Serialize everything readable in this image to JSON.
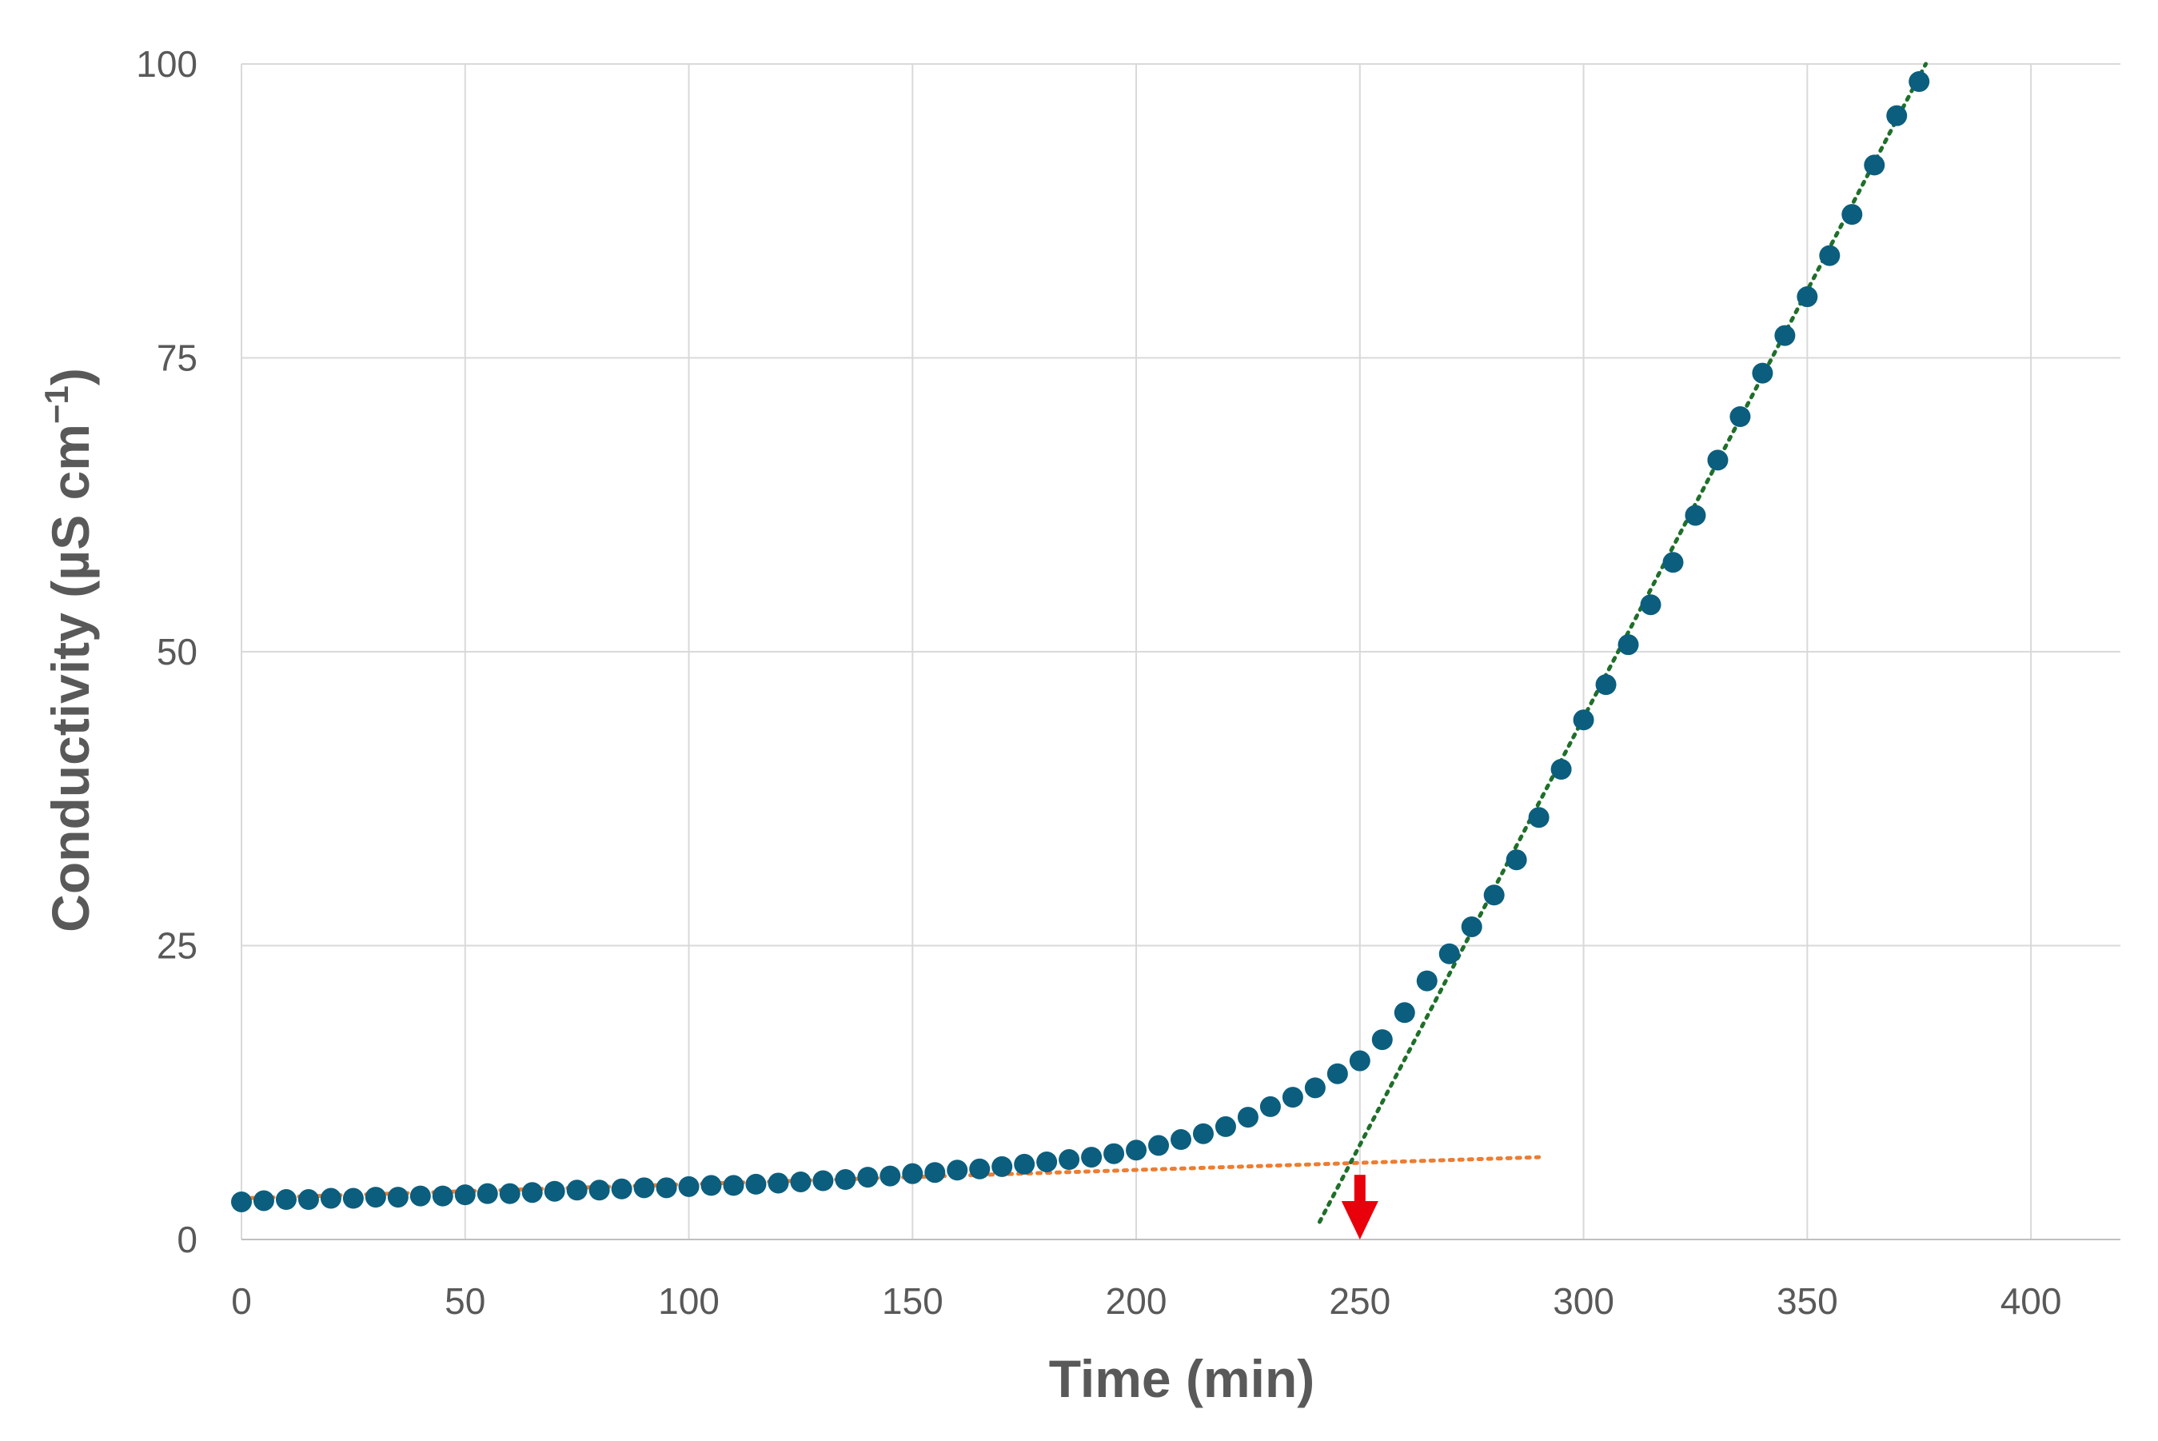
{
  "chart_data": {
    "type": "scatter",
    "title": "",
    "xlabel": "Time (min)",
    "ylabel_main": "Conductivity (µS cm",
    "ylabel_sup": "−1",
    "ylabel_close": ")",
    "xlim": [
      0,
      420
    ],
    "ylim": [
      0,
      100
    ],
    "xticks": [
      0,
      50,
      100,
      150,
      200,
      250,
      300,
      350,
      400
    ],
    "yticks": [
      0,
      25,
      50,
      75,
      100
    ],
    "grid": true,
    "legend": "none",
    "series": [
      {
        "marker": "circle",
        "color": "#0b5e7e",
        "x": [
          0,
          5,
          10,
          15,
          20,
          25,
          30,
          35,
          40,
          45,
          50,
          55,
          60,
          65,
          70,
          75,
          80,
          85,
          90,
          95,
          100,
          105,
          110,
          115,
          120,
          125,
          130,
          135,
          140,
          145,
          150,
          155,
          160,
          165,
          170,
          175,
          180,
          185,
          190,
          195,
          200,
          205,
          210,
          215,
          220,
          225,
          230,
          235,
          240,
          245,
          250,
          255,
          260,
          265,
          270,
          275,
          280,
          285,
          290,
          295,
          300,
          305,
          310,
          315,
          320,
          325,
          330,
          335,
          340,
          345,
          350,
          355,
          360,
          365,
          370,
          375
        ],
        "y": [
          3.2,
          3.3,
          3.4,
          3.4,
          3.5,
          3.5,
          3.6,
          3.6,
          3.7,
          3.7,
          3.8,
          3.9,
          3.9,
          4.0,
          4.1,
          4.2,
          4.2,
          4.3,
          4.4,
          4.4,
          4.5,
          4.6,
          4.6,
          4.7,
          4.8,
          4.9,
          5.0,
          5.1,
          5.3,
          5.4,
          5.6,
          5.7,
          5.9,
          6.0,
          6.2,
          6.4,
          6.6,
          6.8,
          7.0,
          7.3,
          7.6,
          8.0,
          8.5,
          9.0,
          9.6,
          10.4,
          11.3,
          12.1,
          12.9,
          14.1,
          15.2,
          17.0,
          19.3,
          22.0,
          24.3,
          26.6,
          29.3,
          32.3,
          35.9,
          40.0,
          44.2,
          47.2,
          50.6,
          54.0,
          57.6,
          61.6,
          66.3,
          70.0,
          73.7,
          76.9,
          80.2,
          83.7,
          87.2,
          91.4,
          95.6,
          98.5
        ]
      }
    ],
    "trendlines": [
      {
        "color": "#ed7d31",
        "style": "dotted",
        "x": [
          0,
          290
        ],
        "y": [
          3.5,
          7.0
        ]
      },
      {
        "color": "#1f6f2a",
        "style": "dotted",
        "x": [
          241,
          376.5
        ],
        "y": [
          1.5,
          100
        ]
      }
    ],
    "annotations": [
      {
        "kind": "arrow-down",
        "color": "#e8000b",
        "x": 250,
        "y_from": 5.5,
        "y_to": 0
      }
    ]
  }
}
